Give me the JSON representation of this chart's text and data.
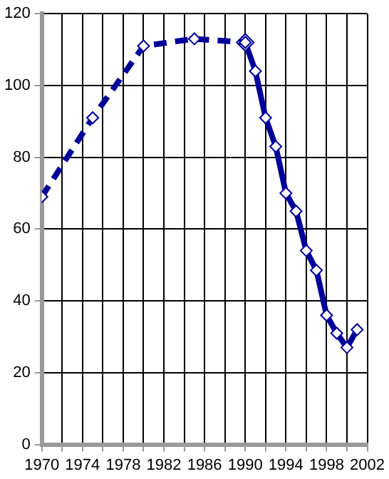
{
  "chart_data": {
    "type": "line",
    "xlim": [
      1970,
      2002
    ],
    "ylim": [
      0,
      120
    ],
    "xticks": [
      1970,
      {
        "value": 1972,
        "label": null
      },
      1974,
      {
        "value": 1976,
        "label": null
      },
      1978,
      {
        "value": 1980,
        "label": null
      },
      1982,
      {
        "value": 1984,
        "label": null
      },
      1986,
      {
        "value": 1988,
        "label": null
      },
      1990,
      {
        "value": 1992,
        "label": null
      },
      1994,
      {
        "value": 1996,
        "label": null
      },
      1998,
      {
        "value": 2000,
        "label": null
      },
      2002
    ],
    "yticks": [
      0,
      20,
      40,
      60,
      80,
      100,
      120
    ],
    "grid": true,
    "legend": false,
    "marker": "diamond",
    "series": [
      {
        "color": "#000099",
        "line_style": "dashed",
        "x": [
          1970,
          1975,
          1980,
          1985,
          1990
        ],
        "values": [
          69,
          91,
          111,
          113,
          112
        ]
      },
      {
        "color": "#000099",
        "line_style": "solid",
        "x": [
          1990,
          1991,
          1992,
          1993,
          1994,
          1995,
          1996,
          1997,
          1998,
          1999,
          2000,
          2001
        ],
        "values": [
          112,
          104,
          91,
          83,
          70,
          65,
          54,
          48.5,
          36,
          31,
          27,
          32
        ]
      }
    ]
  }
}
